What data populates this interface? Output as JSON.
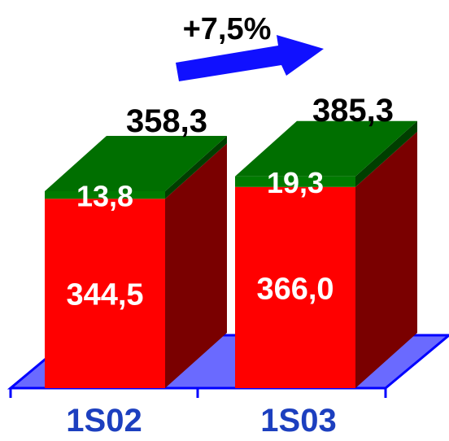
{
  "chart_data": {
    "type": "bar",
    "stacked": true,
    "three_d": true,
    "categories": [
      "1S02",
      "1S03"
    ],
    "series": [
      {
        "values": [
          344.5,
          366.0
        ],
        "color": "#ff0000",
        "side_color": "#7a0000"
      },
      {
        "values": [
          13.8,
          19.3
        ],
        "color": "#007a00",
        "side_color": "#003f00"
      }
    ],
    "value_labels": [
      [
        "344,5",
        "366,0"
      ],
      [
        "13,8",
        "19,3"
      ]
    ],
    "totals": [
      358.3,
      385.3
    ],
    "total_labels": [
      "358,3",
      "385,3"
    ],
    "annotation": "+7,5%",
    "floor_color": "#6a6aff",
    "arrow_color": "#1010ff"
  }
}
